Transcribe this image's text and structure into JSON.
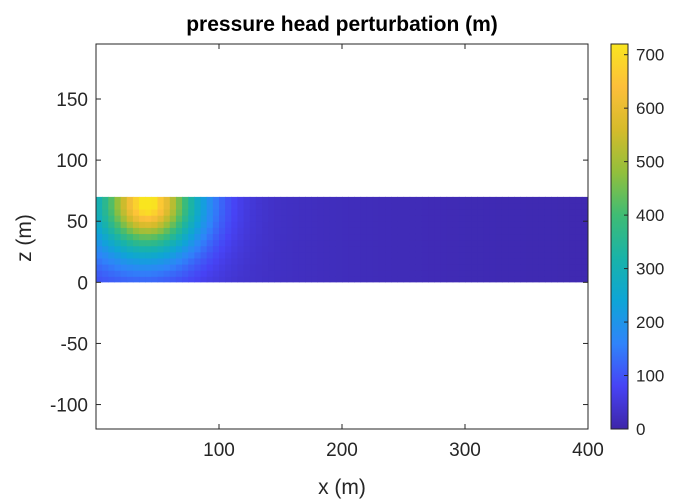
{
  "chart_data": {
    "type": "heatmap",
    "title": "pressure head perturbation (m)",
    "xlabel": "x (m)",
    "ylabel": "z (m)",
    "xlim": [
      0,
      400
    ],
    "ylim": [
      -120,
      195
    ],
    "xticks": [
      100,
      200,
      300,
      400
    ],
    "yticks": [
      -100,
      -50,
      0,
      50,
      100,
      150
    ],
    "colormap": "parula",
    "colorbar": {
      "clim": [
        0,
        720
      ],
      "ticks": [
        0,
        100,
        200,
        300,
        400,
        500,
        600,
        700
      ],
      "colors": [
        "#3e26a8",
        "#4743f5",
        "#2f84fa",
        "#0ea5d6",
        "#19b3a8",
        "#3fbc74",
        "#92bf3c",
        "#d5bb2b",
        "#fdbf3a",
        "#f9e51f"
      ]
    },
    "field": {
      "x_extent": [
        0,
        400
      ],
      "z_extent": [
        0,
        70
      ],
      "peak_value": 700,
      "peak_location": {
        "x": 42,
        "z": 65
      },
      "background_value": 5
    },
    "grid": false,
    "legend": "colorbar-right"
  }
}
